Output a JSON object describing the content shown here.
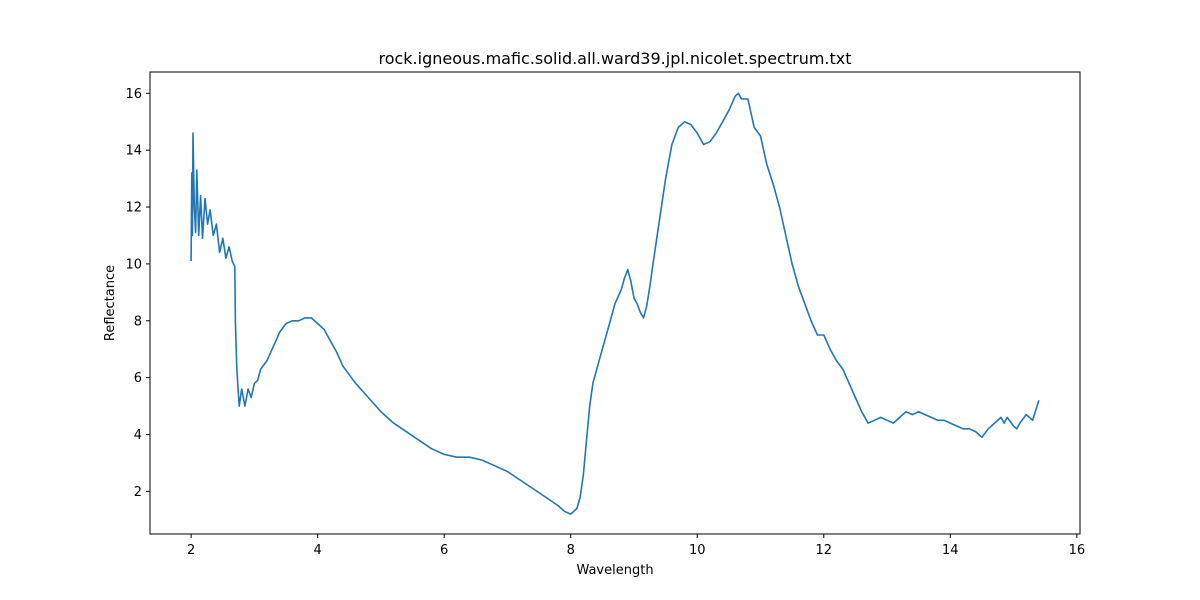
{
  "chart_data": {
    "type": "line",
    "title": "rock.igneous.mafic.solid.all.ward39.jpl.nicolet.spectrum.txt",
    "xlabel": "Wavelength",
    "ylabel": "Reflectance",
    "xlim": [
      1.35,
      16.05
    ],
    "ylim": [
      0.5,
      16.75
    ],
    "xticks": [
      2,
      4,
      6,
      8,
      10,
      12,
      14,
      16
    ],
    "yticks": [
      2,
      4,
      6,
      8,
      10,
      12,
      14,
      16
    ],
    "grid": false,
    "series": [
      {
        "color": "#1f77b4",
        "x": [
          2.0,
          2.01,
          2.02,
          2.03,
          2.05,
          2.07,
          2.09,
          2.12,
          2.15,
          2.18,
          2.22,
          2.26,
          2.3,
          2.35,
          2.4,
          2.45,
          2.5,
          2.55,
          2.6,
          2.65,
          2.69,
          2.7,
          2.72,
          2.74,
          2.76,
          2.8,
          2.85,
          2.9,
          2.95,
          3.0,
          3.05,
          3.1,
          3.2,
          3.3,
          3.4,
          3.5,
          3.6,
          3.7,
          3.8,
          3.9,
          4.0,
          4.1,
          4.2,
          4.3,
          4.4,
          4.5,
          4.6,
          4.8,
          5.0,
          5.2,
          5.4,
          5.6,
          5.8,
          6.0,
          6.2,
          6.4,
          6.6,
          6.8,
          7.0,
          7.2,
          7.4,
          7.6,
          7.8,
          7.9,
          8.0,
          8.1,
          8.15,
          8.2,
          8.25,
          8.3,
          8.35,
          8.4,
          8.5,
          8.6,
          8.7,
          8.8,
          8.85,
          8.9,
          8.95,
          9.0,
          9.05,
          9.1,
          9.15,
          9.2,
          9.25,
          9.3,
          9.4,
          9.5,
          9.6,
          9.7,
          9.8,
          9.9,
          10.0,
          10.1,
          10.2,
          10.3,
          10.4,
          10.5,
          10.6,
          10.65,
          10.7,
          10.8,
          10.9,
          11.0,
          11.1,
          11.2,
          11.3,
          11.4,
          11.5,
          11.6,
          11.7,
          11.8,
          11.9,
          12.0,
          12.1,
          12.2,
          12.3,
          12.4,
          12.5,
          12.6,
          12.7,
          12.8,
          12.9,
          13.0,
          13.1,
          13.2,
          13.3,
          13.4,
          13.5,
          13.6,
          13.7,
          13.8,
          13.9,
          14.0,
          14.1,
          14.2,
          14.3,
          14.4,
          14.5,
          14.6,
          14.7,
          14.8,
          14.85,
          14.9,
          15.0,
          15.05,
          15.1,
          15.2,
          15.3,
          15.4
        ],
        "y": [
          10.1,
          13.2,
          11.0,
          14.6,
          12.0,
          11.1,
          13.3,
          11.0,
          12.4,
          10.9,
          12.3,
          11.4,
          11.9,
          11.0,
          11.4,
          10.4,
          10.9,
          10.2,
          10.6,
          10.1,
          9.9,
          8.0,
          6.4,
          5.7,
          5.0,
          5.6,
          5.0,
          5.6,
          5.3,
          5.8,
          5.9,
          6.3,
          6.6,
          7.1,
          7.6,
          7.9,
          8.0,
          8.0,
          8.1,
          8.1,
          7.9,
          7.7,
          7.3,
          6.9,
          6.4,
          6.1,
          5.8,
          5.3,
          4.8,
          4.4,
          4.1,
          3.8,
          3.5,
          3.3,
          3.2,
          3.2,
          3.1,
          2.9,
          2.7,
          2.4,
          2.1,
          1.8,
          1.5,
          1.3,
          1.2,
          1.4,
          1.8,
          2.6,
          3.8,
          5.0,
          5.8,
          6.2,
          7.0,
          7.8,
          8.6,
          9.1,
          9.5,
          9.8,
          9.4,
          8.8,
          8.6,
          8.3,
          8.1,
          8.5,
          9.2,
          10.0,
          11.5,
          13.0,
          14.2,
          14.8,
          15.0,
          14.9,
          14.6,
          14.2,
          14.3,
          14.6,
          15.0,
          15.4,
          15.9,
          16.0,
          15.8,
          15.8,
          14.8,
          14.5,
          13.5,
          12.8,
          12.0,
          11.0,
          10.0,
          9.2,
          8.6,
          8.0,
          7.5,
          7.5,
          7.0,
          6.6,
          6.3,
          5.8,
          5.3,
          4.8,
          4.4,
          4.5,
          4.6,
          4.5,
          4.4,
          4.6,
          4.8,
          4.7,
          4.8,
          4.7,
          4.6,
          4.5,
          4.5,
          4.4,
          4.3,
          4.2,
          4.2,
          4.1,
          3.9,
          4.2,
          4.4,
          4.6,
          4.4,
          4.6,
          4.3,
          4.2,
          4.4,
          4.7,
          4.5,
          5.2
        ]
      }
    ]
  }
}
